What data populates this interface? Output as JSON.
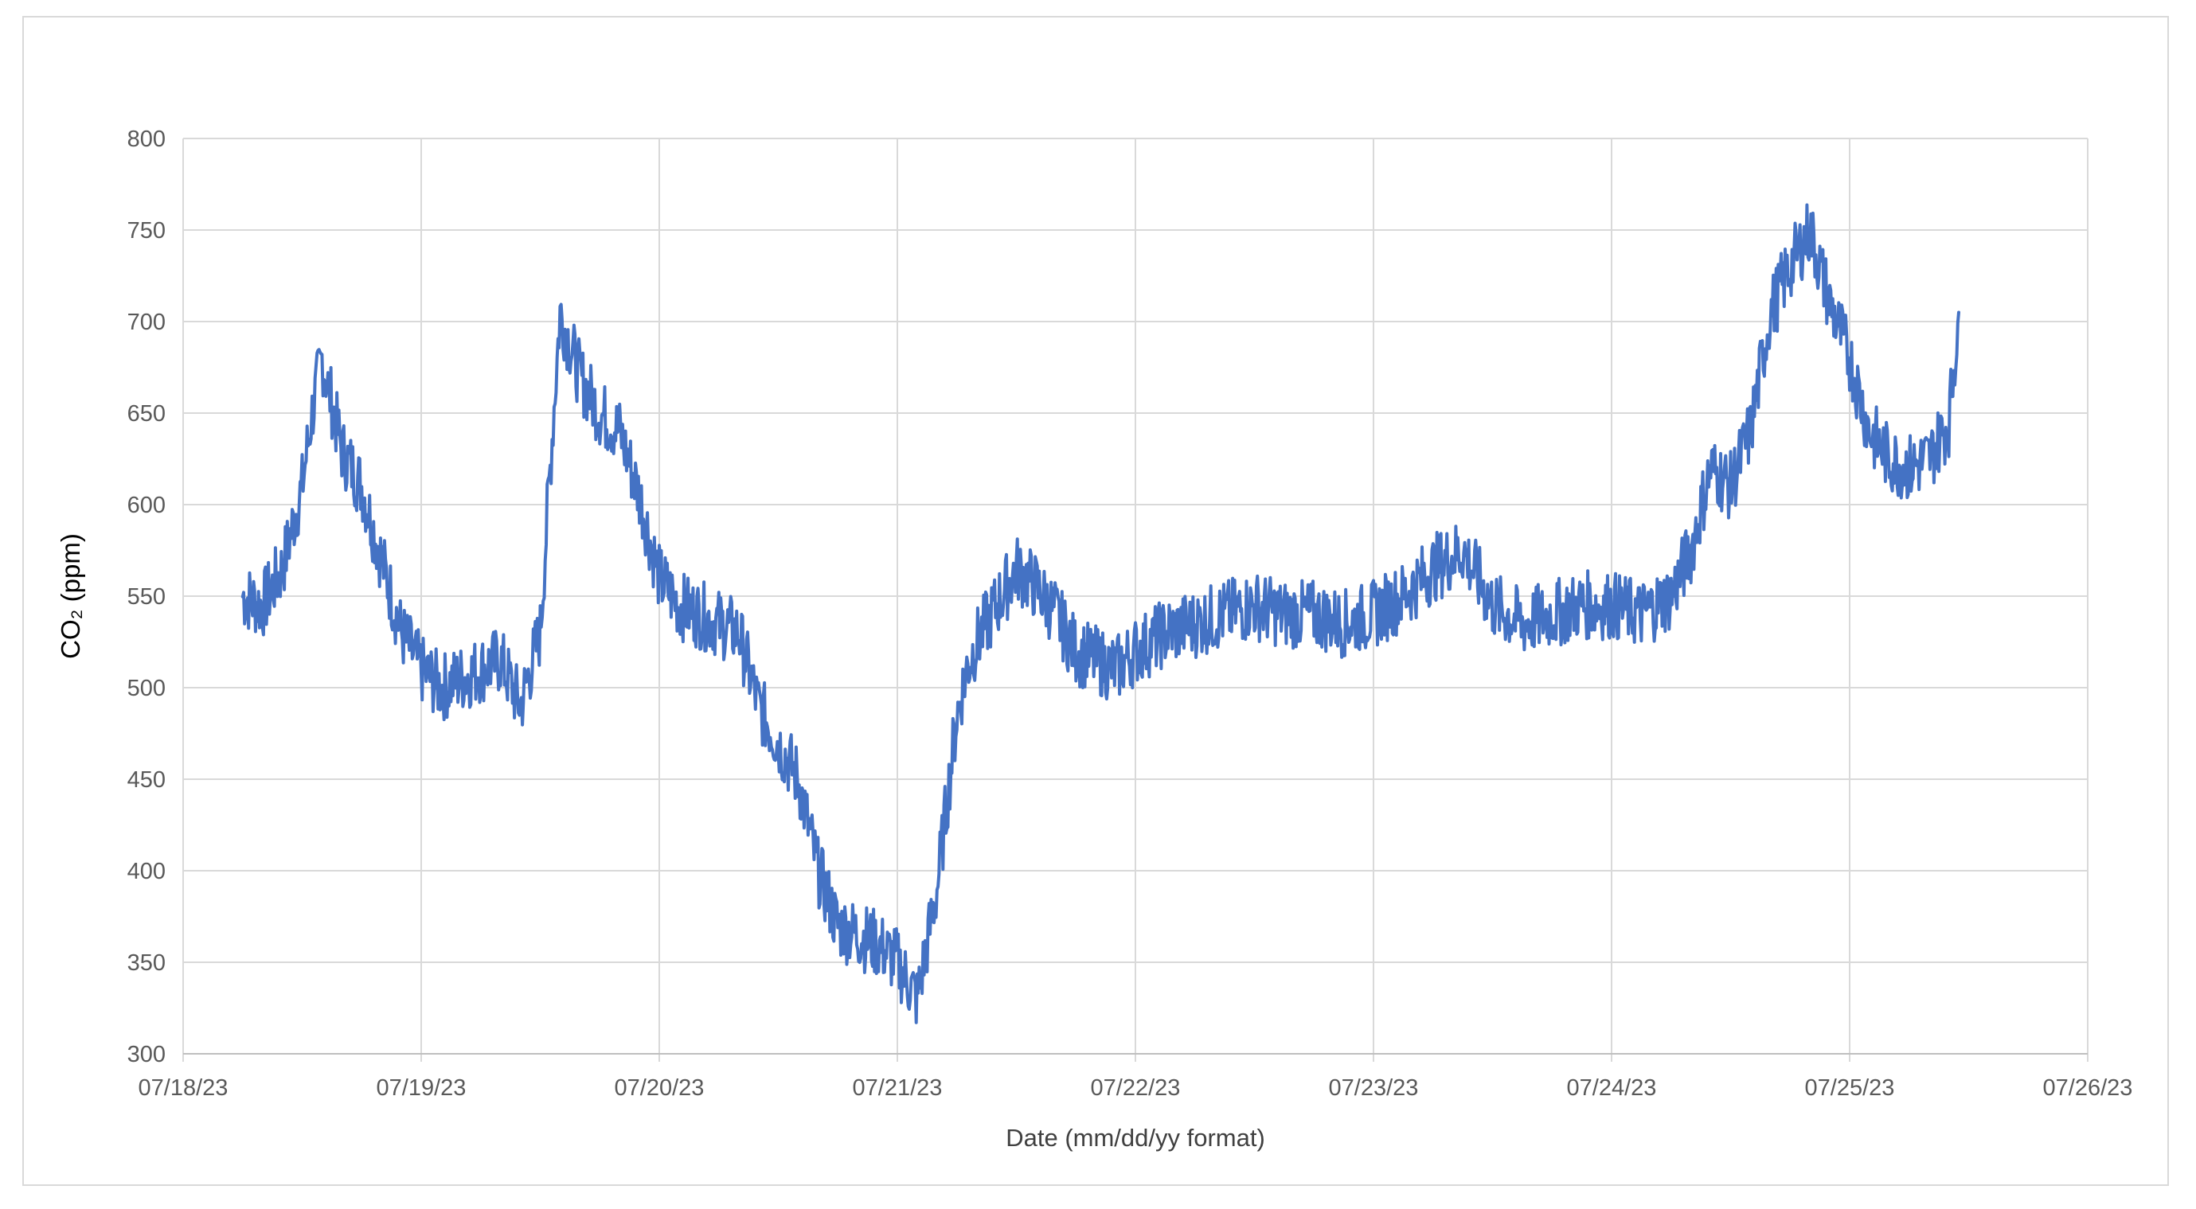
{
  "chart_data": {
    "type": "line",
    "title": "",
    "xlabel": "Date (mm/dd/yy format)",
    "ylabel": "CO₂ (ppm)",
    "ylim": [
      300,
      800
    ],
    "yticks": [
      "300",
      "350",
      "400",
      "450",
      "500",
      "550",
      "600",
      "650",
      "700",
      "750",
      "800"
    ],
    "xlim": [
      "07/18/23",
      "07/26/23"
    ],
    "xticks": [
      "07/18/23",
      "07/19/23",
      "07/20/23",
      "07/21/23",
      "07/22/23",
      "07/23/23",
      "07/24/23",
      "07/25/23",
      "07/26/23"
    ],
    "grid": true,
    "legend": "none",
    "line_color": "#4472C4",
    "grid_color": "#d9d9d9",
    "series": [
      {
        "x": [
          "07/18/23 06:00",
          "07/18/23 08:00",
          "07/18/23 10:00",
          "07/18/23 12:00",
          "07/18/23 13:00",
          "07/18/23 14:00",
          "07/18/23 16:00",
          "07/18/23 18:00",
          "07/18/23 20:00",
          "07/18/23 22:00",
          "07/19/23 00:00",
          "07/19/23 02:00",
          "07/19/23 04:00",
          "07/19/23 06:00",
          "07/19/23 08:00",
          "07/19/23 10:00",
          "07/19/23 12:00",
          "07/19/23 13:00",
          "07/19/23 14:00",
          "07/19/23 16:00",
          "07/19/23 18:00",
          "07/19/23 20:00",
          "07/19/23 22:00",
          "07/20/23 00:00",
          "07/20/23 02:00",
          "07/20/23 04:00",
          "07/20/23 06:00",
          "07/20/23 08:00",
          "07/20/23 10:00",
          "07/20/23 12:00",
          "07/20/23 14:00",
          "07/20/23 16:00",
          "07/20/23 18:00",
          "07/20/23 20:00",
          "07/20/23 22:00",
          "07/21/23 00:00",
          "07/21/23 02:00",
          "07/21/23 04:00",
          "07/21/23 06:00",
          "07/21/23 07:00",
          "07/21/23 08:00",
          "07/21/23 10:00",
          "07/21/23 12:00",
          "07/21/23 14:00",
          "07/21/23 16:00",
          "07/21/23 18:00",
          "07/21/23 20:00",
          "07/21/23 22:00",
          "07/22/23 00:00",
          "07/22/23 03:00",
          "07/22/23 06:00",
          "07/22/23 09:00",
          "07/22/23 12:00",
          "07/22/23 15:00",
          "07/22/23 18:00",
          "07/22/23 21:00",
          "07/23/23 00:00",
          "07/23/23 03:00",
          "07/23/23 06:00",
          "07/23/23 09:00",
          "07/23/23 12:00",
          "07/23/23 15:00",
          "07/23/23 18:00",
          "07/23/23 21:00",
          "07/24/23 00:00",
          "07/24/23 03:00",
          "07/24/23 06:00",
          "07/24/23 08:00",
          "07/24/23 10:00",
          "07/24/23 12:00",
          "07/24/23 14:00",
          "07/24/23 16:00",
          "07/24/23 18:00",
          "07/24/23 20:00",
          "07/24/23 22:00",
          "07/25/23 00:00",
          "07/25/23 02:00",
          "07/25/23 04:00",
          "07/25/23 06:00",
          "07/25/23 08:00",
          "07/25/23 10:00",
          "07/25/23 11:00"
        ],
        "y": [
          550,
          545,
          565,
          610,
          650,
          680,
          630,
          610,
          570,
          530,
          510,
          500,
          505,
          510,
          515,
          490,
          530,
          620,
          705,
          670,
          650,
          640,
          605,
          560,
          545,
          540,
          535,
          530,
          490,
          470,
          450,
          400,
          370,
          365,
          360,
          350,
          330,
          390,
          485,
          510,
          525,
          545,
          565,
          555,
          540,
          520,
          515,
          510,
          520,
          530,
          535,
          540,
          545,
          540,
          540,
          535,
          540,
          550,
          565,
          575,
          545,
          535,
          540,
          545,
          545,
          540,
          550,
          575,
          620,
          610,
          640,
          705,
          730,
          750,
          710,
          680,
          640,
          625,
          620,
          625,
          645,
          705
        ]
      }
    ]
  }
}
